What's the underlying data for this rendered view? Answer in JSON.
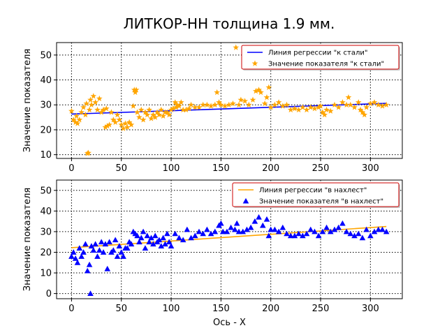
{
  "figure": {
    "title": "ЛИТКОР-НН толщина 1.9 мм."
  },
  "chart_data": [
    {
      "type": "scatter",
      "xlim": [
        -15,
        332
      ],
      "ylim": [
        8.5,
        55
      ],
      "xticks": [
        0,
        50,
        100,
        150,
        200,
        250,
        300
      ],
      "yticks": [
        10,
        20,
        30,
        40,
        50
      ],
      "xlabel": "",
      "ylabel": "Значение показателя",
      "grid": true,
      "legend": "top-right",
      "series": [
        {
          "name": "Линия регрессии \"к стали\"",
          "kind": "line",
          "color": "#0000ff",
          "x": [
            0,
            316
          ],
          "y": [
            26.3,
            30.6
          ]
        },
        {
          "name": "Значение показателя \"к стали\"",
          "kind": "scatter",
          "marker": "star",
          "color": "#ffa500",
          "x": [
            0,
            2,
            4,
            5,
            6,
            8,
            10,
            12,
            14,
            15,
            16,
            17,
            18,
            19,
            20,
            22,
            24,
            26,
            28,
            30,
            32,
            34,
            35,
            36,
            38,
            40,
            42,
            44,
            46,
            48,
            50,
            52,
            54,
            56,
            58,
            60,
            62,
            63,
            64,
            65,
            66,
            68,
            70,
            72,
            74,
            76,
            78,
            80,
            82,
            84,
            86,
            88,
            90,
            92,
            94,
            96,
            98,
            100,
            102,
            104,
            105,
            106,
            108,
            110,
            112,
            115,
            118,
            120,
            124,
            128,
            132,
            136,
            140,
            144,
            146,
            148,
            150,
            154,
            158,
            162,
            165,
            168,
            170,
            174,
            178,
            182,
            185,
            188,
            190,
            194,
            196,
            198,
            200,
            204,
            208,
            212,
            216,
            220,
            224,
            228,
            232,
            236,
            240,
            244,
            248,
            250,
            252,
            254,
            256,
            260,
            264,
            268,
            272,
            276,
            278,
            280,
            284,
            288,
            290,
            292,
            294,
            296,
            300,
            304,
            308,
            312,
            316
          ],
          "y": [
            27.5,
            24,
            23,
            25.5,
            22.5,
            24,
            27,
            29,
            26,
            30.5,
            10.5,
            10.7,
            28,
            32,
            30,
            33.5,
            31,
            28,
            32.5,
            27,
            28,
            21,
            28.5,
            21.5,
            22,
            27,
            24,
            23,
            26,
            24,
            22,
            20.5,
            22.5,
            21,
            23,
            22,
            29.5,
            36,
            35,
            36,
            27,
            25,
            28,
            24,
            27,
            26,
            28,
            24.5,
            26,
            25,
            27,
            26,
            28,
            25.5,
            27,
            27,
            26,
            28,
            28.5,
            31,
            29,
            30,
            29.5,
            31,
            28,
            28,
            28.5,
            30,
            29,
            29,
            30,
            30,
            29.5,
            30,
            35,
            31,
            30,
            29.5,
            30,
            30.5,
            53,
            30,
            32,
            31.5,
            30,
            32,
            35.5,
            36,
            35,
            30.5,
            33,
            37,
            29,
            30,
            31,
            29.5,
            30,
            28,
            28.5,
            28,
            29,
            28,
            29,
            28.5,
            29,
            29.5,
            27,
            26,
            28,
            27.5,
            30,
            29,
            31,
            30,
            33,
            30,
            29,
            31,
            28,
            27,
            26,
            29,
            30.5,
            31,
            30,
            29.5,
            30
          ]
        }
      ]
    },
    {
      "type": "scatter",
      "xlim": [
        -15,
        332
      ],
      "ylim": [
        -2.5,
        55
      ],
      "xticks": [
        0,
        50,
        100,
        150,
        200,
        250,
        300
      ],
      "yticks": [
        0,
        10,
        20,
        30,
        40,
        50
      ],
      "xlabel": "Ось - X",
      "ylabel": "Значение показателя",
      "grid": true,
      "legend": "top-right",
      "series": [
        {
          "name": "Линия регрессии \"в нахлест\"",
          "kind": "line",
          "color": "#ffa500",
          "x": [
            0,
            316
          ],
          "y": [
            22.2,
            32.5
          ]
        },
        {
          "name": "Значение показателя \"в нахлест\"",
          "kind": "scatter",
          "marker": "triangle",
          "color": "#0000ff",
          "x": [
            0,
            2,
            4,
            6,
            8,
            10,
            12,
            14,
            16,
            18,
            19,
            20,
            22,
            24,
            26,
            28,
            30,
            32,
            34,
            36,
            38,
            40,
            42,
            44,
            46,
            48,
            50,
            52,
            54,
            56,
            58,
            60,
            62,
            64,
            66,
            68,
            70,
            72,
            74,
            76,
            78,
            80,
            82,
            84,
            86,
            88,
            90,
            92,
            94,
            96,
            98,
            100,
            104,
            108,
            112,
            116,
            120,
            124,
            128,
            132,
            136,
            140,
            144,
            148,
            150,
            152,
            156,
            160,
            164,
            166,
            168,
            172,
            176,
            180,
            184,
            188,
            192,
            196,
            198,
            200,
            204,
            208,
            212,
            216,
            220,
            224,
            228,
            232,
            236,
            240,
            244,
            248,
            252,
            256,
            260,
            264,
            268,
            272,
            276,
            280,
            284,
            288,
            292,
            296,
            300,
            304,
            308,
            312,
            316
          ],
          "y": [
            18,
            20,
            17,
            15,
            22,
            18,
            20,
            24,
            11,
            14,
            0,
            23,
            21,
            24,
            18,
            21,
            25,
            20,
            24,
            12,
            25,
            20,
            21,
            26,
            18,
            23,
            20,
            18,
            22,
            22,
            25,
            24,
            30,
            29,
            28,
            25,
            27,
            30,
            22,
            28,
            25,
            27,
            24,
            28,
            25,
            26,
            23,
            27,
            24,
            29,
            25,
            23,
            29,
            27,
            26,
            31,
            27,
            28,
            30,
            29,
            31,
            29,
            30,
            33,
            34,
            30,
            30,
            32,
            31,
            34,
            30,
            30,
            31,
            32,
            35,
            37,
            33,
            36,
            28,
            31,
            31,
            30,
            32,
            29,
            28,
            28,
            29,
            28,
            29,
            31,
            30,
            28,
            30,
            32,
            30,
            31,
            32,
            34,
            30,
            29,
            28,
            29,
            27,
            31,
            28,
            30,
            31,
            31,
            30
          ]
        }
      ]
    }
  ]
}
